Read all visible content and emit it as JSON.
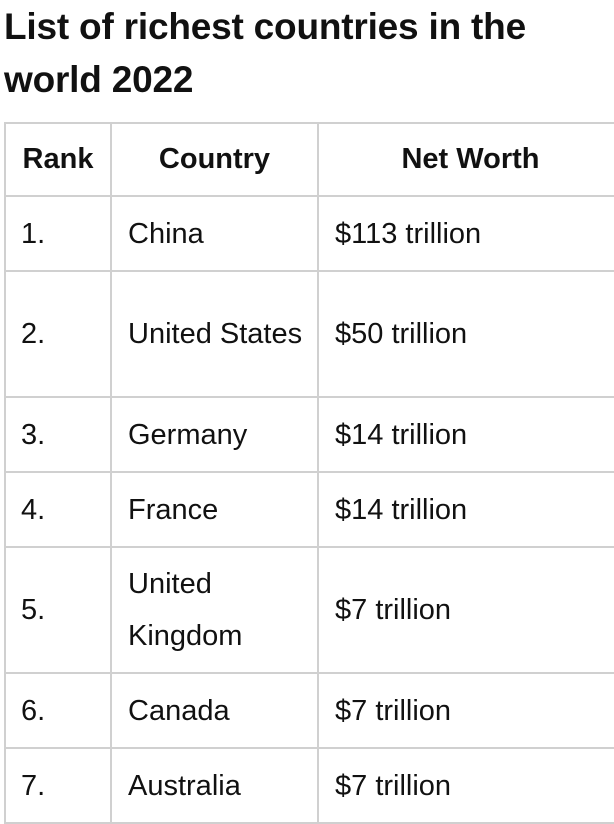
{
  "title": "List of richest countries in the world 2022",
  "table": {
    "headers": [
      "Rank",
      "Country",
      "Net Worth"
    ],
    "rows": [
      {
        "rank": "1.",
        "country": "China",
        "net_worth": "$113 trillion"
      },
      {
        "rank": "2.",
        "country": "United States",
        "net_worth": "$50 trillion"
      },
      {
        "rank": "3.",
        "country": "Germany",
        "net_worth": "$14 trillion"
      },
      {
        "rank": "4.",
        "country": "France",
        "net_worth": "$14 trillion"
      },
      {
        "rank": "5.",
        "country": "United Kingdom",
        "net_worth": "$7 trillion"
      },
      {
        "rank": "6.",
        "country": "Canada",
        "net_worth": "$7 trillion"
      },
      {
        "rank": "7.",
        "country": "Australia",
        "net_worth": "$7 trillion"
      }
    ]
  }
}
